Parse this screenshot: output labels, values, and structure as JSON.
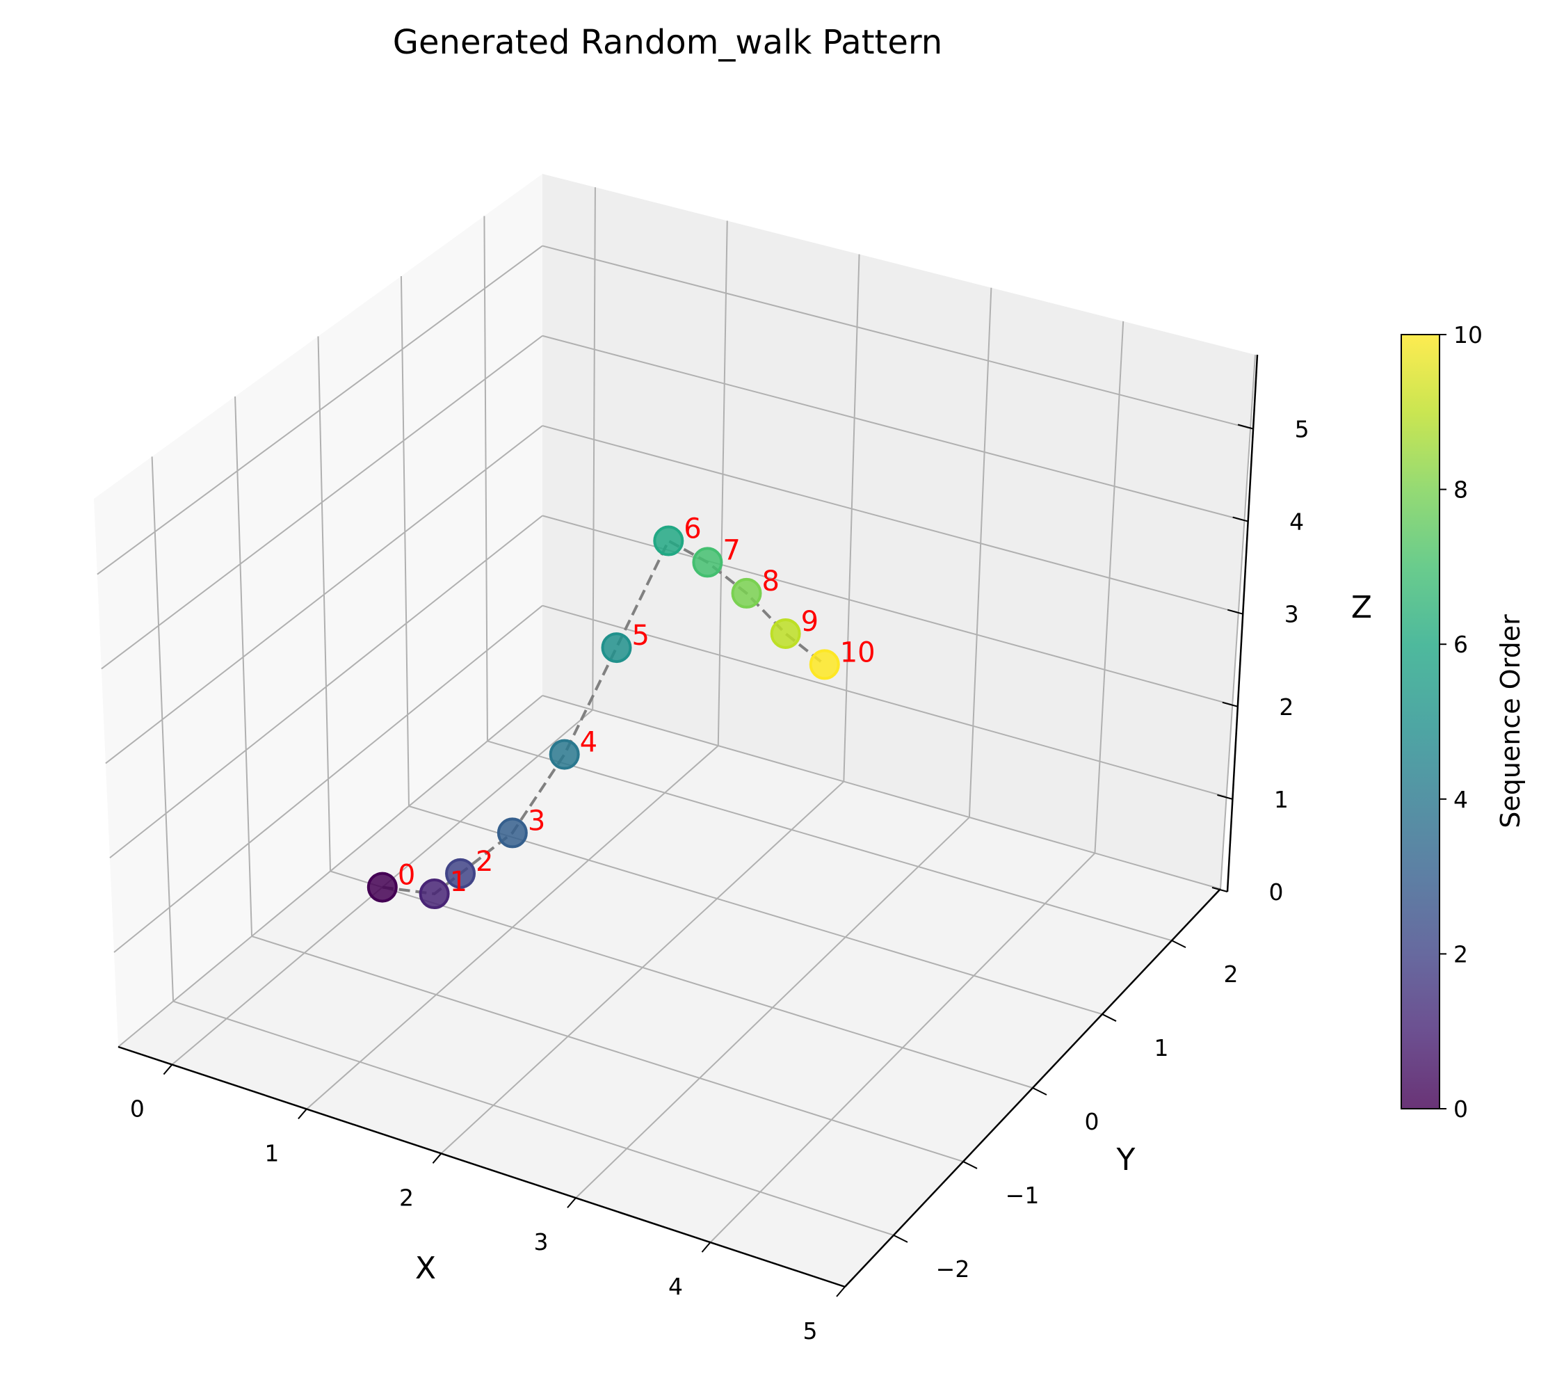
{
  "chart_data": {
    "type": "scatter",
    "title": "Generated Random_walk Pattern",
    "xlabel": "X",
    "ylabel": "Y",
    "zlabel": "Z",
    "x_ticks": [
      "0",
      "1",
      "2",
      "3",
      "4",
      "5"
    ],
    "y_ticks": [
      "−2",
      "−1",
      "0",
      "1",
      "2"
    ],
    "z_ticks": [
      "0",
      "1",
      "2",
      "3",
      "4",
      "5"
    ],
    "xlim": [
      -0.4,
      5.0
    ],
    "ylim": [
      -2.7,
      2.7
    ],
    "zlim": [
      0,
      5.8
    ],
    "grid": true,
    "colormap": "viridis",
    "line_style": "dashed",
    "line_color": "#808080",
    "label_color": "#ff0000",
    "colorbar": {
      "label": "Sequence Order",
      "ticks": [
        "0",
        "2",
        "4",
        "6",
        "8",
        "10"
      ],
      "range": [
        0,
        10
      ]
    },
    "points": [
      {
        "label": "0",
        "seq": 0,
        "x": 0.0,
        "y": 0.0,
        "z": 0.0
      },
      {
        "label": "1",
        "seq": 1,
        "x": 0.4,
        "y": 0.0,
        "z": 0.1
      },
      {
        "label": "2",
        "seq": 2,
        "x": 0.6,
        "y": 0.0,
        "z": 0.4
      },
      {
        "label": "3",
        "seq": 3,
        "x": 1.0,
        "y": 0.0,
        "z": 1.0
      },
      {
        "label": "4",
        "seq": 4,
        "x": 1.4,
        "y": 0.0,
        "z": 2.0
      },
      {
        "label": "5",
        "seq": 5,
        "x": 1.8,
        "y": 0.0,
        "z": 3.3
      },
      {
        "label": "6",
        "seq": 6,
        "x": 2.2,
        "y": 0.0,
        "z": 4.6
      },
      {
        "label": "7",
        "seq": 7,
        "x": 2.5,
        "y": 0.0,
        "z": 4.5
      },
      {
        "label": "8",
        "seq": 8,
        "x": 2.8,
        "y": 0.0,
        "z": 4.3
      },
      {
        "label": "9",
        "seq": 9,
        "x": 3.1,
        "y": 0.0,
        "z": 4.0
      },
      {
        "label": "10",
        "seq": 10,
        "x": 3.4,
        "y": 0.0,
        "z": 3.8
      }
    ]
  }
}
